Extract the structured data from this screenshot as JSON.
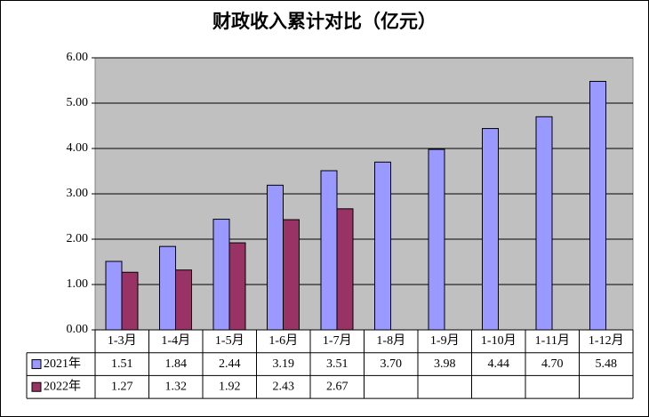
{
  "chart_data": {
    "type": "bar",
    "title": "财政收入累计对比（亿元）",
    "categories": [
      "1-3月",
      "1-4月",
      "1-5月",
      "1-6月",
      "1-7月",
      "1-8月",
      "1-9月",
      "1-10月",
      "1-11月",
      "1-12月"
    ],
    "series": [
      {
        "name": "2021年",
        "color": "#9999ff",
        "values": [
          1.51,
          1.84,
          2.44,
          3.19,
          3.51,
          3.7,
          3.98,
          4.44,
          4.7,
          5.48
        ],
        "value_labels": [
          "1.51",
          "1.84",
          "2.44",
          "3.19",
          "3.51",
          "3.70",
          "3.98",
          "4.44",
          "4.70",
          "5.48"
        ]
      },
      {
        "name": "2022年",
        "color": "#993366",
        "values": [
          1.27,
          1.32,
          1.92,
          2.43,
          2.67,
          null,
          null,
          null,
          null,
          null
        ],
        "value_labels": [
          "1.27",
          "1.32",
          "1.92",
          "2.43",
          "2.67",
          null,
          null,
          null,
          null,
          null
        ]
      }
    ],
    "ylim": [
      0,
      6
    ],
    "yticks": [
      {
        "value": 0,
        "label": "0.00"
      },
      {
        "value": 1,
        "label": "1.00"
      },
      {
        "value": 2,
        "label": "2.00"
      },
      {
        "value": 3,
        "label": "3.00"
      },
      {
        "value": 4,
        "label": "4.00"
      },
      {
        "value": 5,
        "label": "5.00"
      },
      {
        "value": 6,
        "label": "6.00"
      }
    ],
    "grid": true
  }
}
